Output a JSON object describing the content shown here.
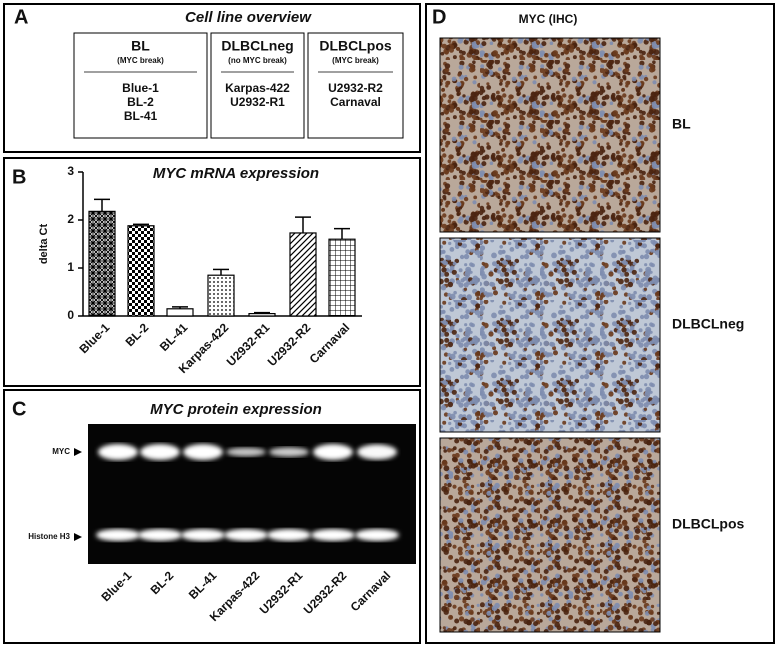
{
  "panel_a": {
    "letter": "A",
    "title": "Cell line overview",
    "groups": [
      {
        "name": "BL",
        "note": "(MYC break)",
        "lines": [
          "Blue-1",
          "BL-2",
          "BL-41"
        ]
      },
      {
        "name": "DLBCLneg",
        "note": "(no MYC break)",
        "lines": [
          "Karpas-422",
          "U2932-R1"
        ]
      },
      {
        "name": "DLBCLpos",
        "note": "(MYC break)",
        "lines": [
          "U2932-R2",
          "Carnaval"
        ]
      }
    ]
  },
  "chart_data": {
    "type": "bar",
    "letter": "B",
    "title": "MYC mRNA expression",
    "y_label": "delta Ct",
    "categories": [
      "Blue-1",
      "BL-2",
      "BL-41",
      "Karpas-422",
      "U2932-R1",
      "U2932-R2",
      "Carnaval"
    ],
    "values": [
      2.18,
      1.88,
      0.15,
      0.85,
      0.05,
      1.73,
      1.6
    ],
    "errors": [
      0.25,
      0.03,
      0.04,
      0.12,
      0.02,
      0.33,
      0.22
    ],
    "ylim": [
      0,
      3
    ],
    "yticks": [
      0,
      1,
      2,
      3
    ]
  },
  "panel_c": {
    "letter": "C",
    "title": "MYC protein expression",
    "band_labels": [
      "MYC",
      "Histone H3"
    ],
    "lanes": [
      "Blue-1",
      "BL-2",
      "BL-41",
      "Karpas-422",
      "U2932-R1",
      "U2932-R2",
      "Carnaval"
    ]
  },
  "panel_d": {
    "letter": "D",
    "title": "MYC (IHC)",
    "images": [
      "BL",
      "DLBCLneg",
      "DLBCLpos"
    ]
  }
}
